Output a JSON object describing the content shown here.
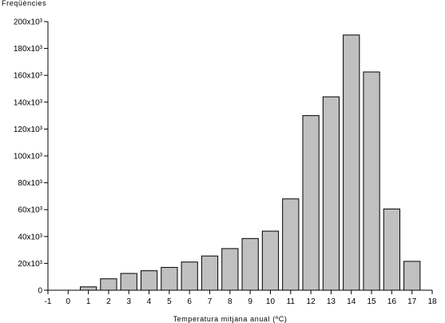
{
  "chart_data": {
    "type": "bar",
    "ylabel": "Freqüències",
    "xlabel": "Temperatura mitjana anual (ºC)",
    "x_ticks": [
      -1,
      0,
      1,
      2,
      3,
      4,
      5,
      6,
      7,
      8,
      9,
      10,
      11,
      12,
      13,
      14,
      15,
      16,
      17,
      18
    ],
    "xlim": [
      -1,
      18
    ],
    "ylim": [
      0,
      200000
    ],
    "y_ticks": [
      0,
      20000,
      40000,
      60000,
      80000,
      100000,
      120000,
      140000,
      160000,
      180000,
      200000
    ],
    "y_tick_labels": [
      "0",
      "20x10³",
      "40x10³",
      "60x10³",
      "80x10³",
      "100x10³",
      "120x10³",
      "140x10³",
      "160x10³",
      "180x10³",
      "200x10³"
    ],
    "categories": [
      1,
      2,
      3,
      4,
      5,
      6,
      7,
      8,
      9,
      10,
      11,
      12,
      13,
      14,
      15,
      16,
      17
    ],
    "values": [
      2500,
      8500,
      12500,
      14500,
      17000,
      21000,
      25500,
      31000,
      38500,
      44000,
      68000,
      130000,
      144000,
      190000,
      162500,
      60500,
      21500
    ],
    "bar_color": "#c0c0c0",
    "grid": false
  }
}
